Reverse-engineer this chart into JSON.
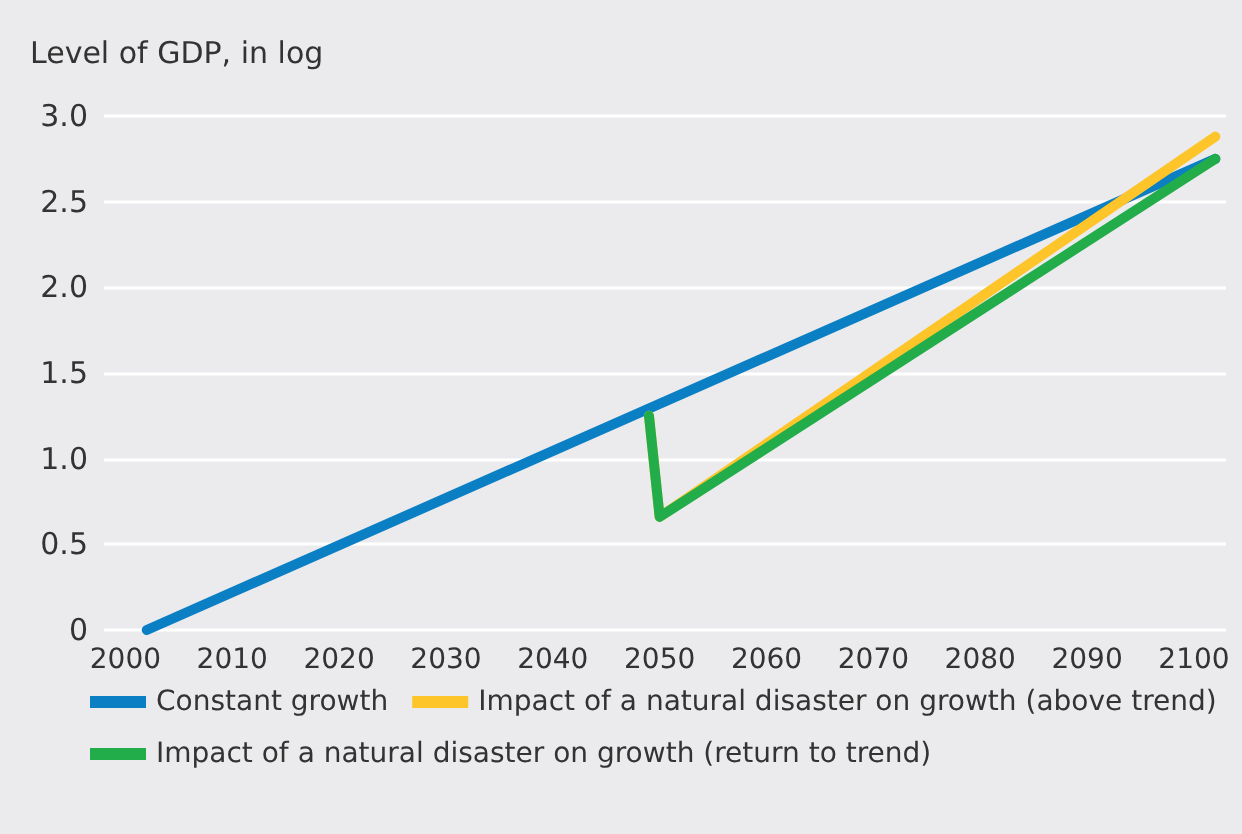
{
  "chart_data": {
    "type": "line",
    "ylabel": "Level of GDP, in log",
    "xlim": [
      1998,
      2103
    ],
    "xticks": [
      2000,
      2010,
      2020,
      2030,
      2040,
      2050,
      2060,
      2070,
      2080,
      2090,
      2100
    ],
    "ylim": [
      0,
      3
    ],
    "yticks": [
      {
        "value": 0,
        "label": "0"
      },
      0.5,
      {
        "value": 1,
        "label": "1.0"
      },
      1.5,
      {
        "value": 2,
        "label": "2.0"
      },
      2.5,
      {
        "value": 3,
        "label": "3.0"
      }
    ],
    "grid": "y",
    "legend": "bottom",
    "marker": "none",
    "line_style": "solid",
    "series": [
      {
        "name": "Constant growth",
        "color": "#0a7fc4",
        "x": [
          2002,
          2102
        ],
        "values": [
          0,
          2.75
        ]
      },
      {
        "name": "Impact of a natural disaster on growth (above trend)",
        "color": "#fdc52a",
        "x": [
          2049,
          2050,
          2102
        ],
        "values": [
          1.25,
          0.66,
          2.88
        ]
      },
      {
        "name": "Impact of a natural disaster on growth (return to trend)",
        "color": "#22ad4a",
        "x": [
          2049,
          2050,
          2102
        ],
        "values": [
          1.25,
          0.66,
          2.75
        ]
      }
    ]
  }
}
